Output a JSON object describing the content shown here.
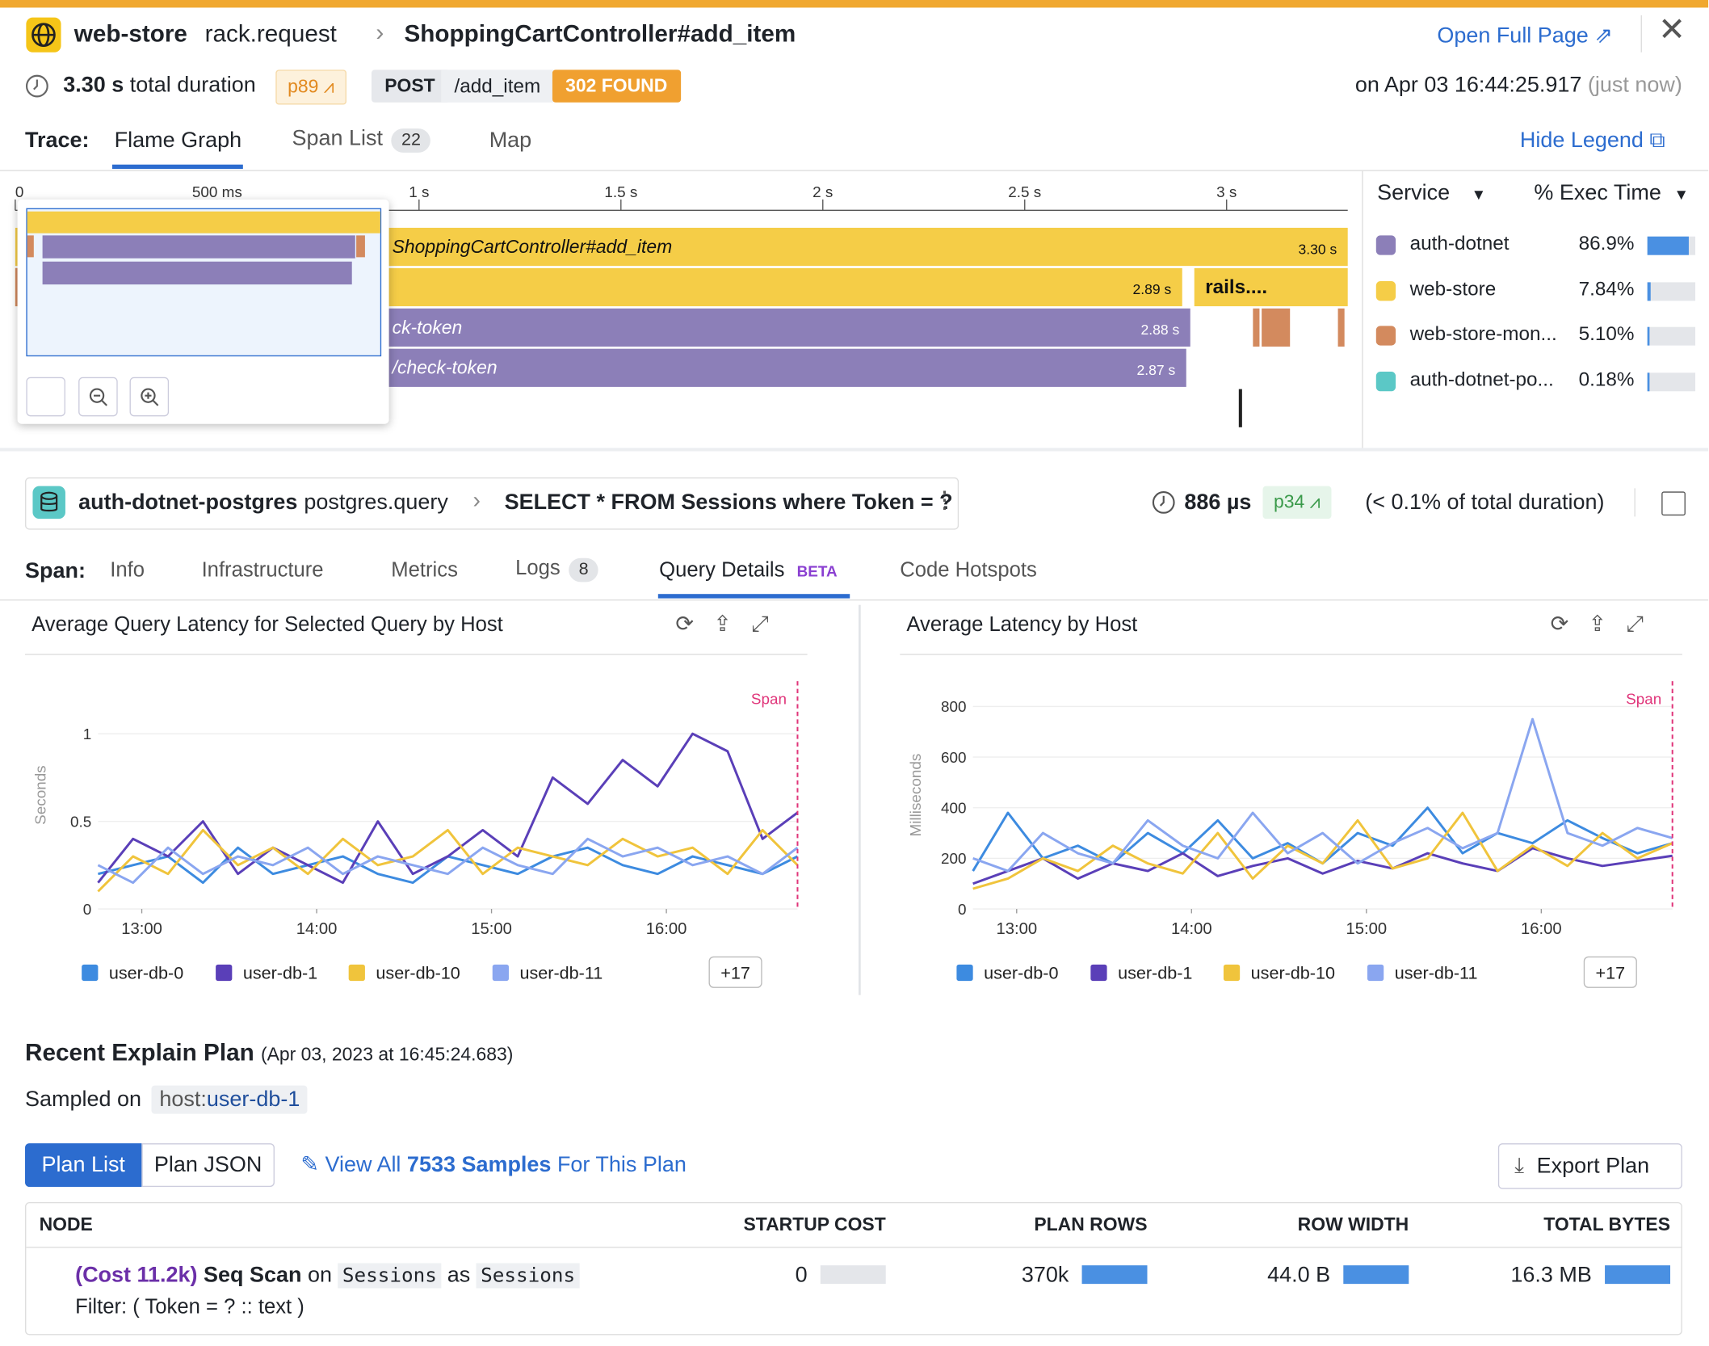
{
  "header": {
    "service": "web-store",
    "operation": "rack.request",
    "resource": "ShoppingCartController#add_item",
    "open_full_page": "Open Full Page",
    "duration": "3.30 s",
    "duration_label": "total duration",
    "percentile": "p89",
    "method": "POST",
    "path": "/add_item",
    "status": "302 FOUND",
    "timestamp": "on Apr 03 16:44:25.917",
    "relative": "(just now)"
  },
  "trace_tabs": {
    "label": "Trace:",
    "tabs": [
      "Flame Graph",
      "Span List",
      "Map"
    ],
    "span_count": "22",
    "hide_legend": "Hide Legend"
  },
  "flame_graph": {
    "xlim": [
      0,
      3.3
    ],
    "xticks": [
      {
        "value": 0,
        "label": "0"
      },
      {
        "value": 0.5,
        "label": "500 ms"
      },
      {
        "value": 1,
        "label": "1 s"
      },
      {
        "value": 1.5,
        "label": "1.5 s"
      },
      {
        "value": 2,
        "label": "2 s"
      },
      {
        "value": 2.5,
        "label": "2.5 s"
      },
      {
        "value": 3,
        "label": "3 s"
      }
    ],
    "spans": [
      {
        "label": "ShoppingCartController#add_item",
        "row": 0,
        "start": 0,
        "duration": {
          "value": 3.3,
          "label": "3.30 s"
        },
        "color": "#f5cd47"
      },
      {
        "row": 1,
        "start": 0,
        "duration": {
          "value": 2.89,
          "label": "2.89 s"
        },
        "color": "#f5cd47"
      },
      {
        "label": "rails....",
        "row": 1,
        "start": 2.92,
        "duration": {
          "value": 0.38
        },
        "color": "#f5cd47"
      },
      {
        "label": "ck-token",
        "row": 2,
        "start": 0.03,
        "duration": {
          "value": 2.88,
          "label": "2.88 s"
        },
        "color": "#8c7fb8"
      },
      {
        "label": "/check-token",
        "row": 3,
        "start": 0.03,
        "duration": {
          "value": 2.87,
          "label": "2.87 s"
        },
        "color": "#8c7fb8"
      }
    ]
  },
  "legend": {
    "service_header": "Service",
    "exec_header": "% Exec Time",
    "rows": [
      {
        "name": "auth-dotnet",
        "color": "#8c7fb8",
        "pct": {
          "value": 86.9,
          "label": "86.9%"
        }
      },
      {
        "name": "web-store",
        "color": "#f5cd47",
        "pct": {
          "value": 7.84,
          "label": "7.84%"
        }
      },
      {
        "name": "web-store-mon...",
        "color": "#d38a5e",
        "pct": {
          "value": 5.1,
          "label": "5.10%"
        }
      },
      {
        "name": "auth-dotnet-po...",
        "color": "#5bc8c6",
        "pct": {
          "value": 0.18,
          "label": "0.18%"
        }
      }
    ]
  },
  "span_header": {
    "service": "auth-dotnet-postgres",
    "operation": "postgres.query",
    "resource": "SELECT * FROM Sessions where Token = ?",
    "duration": "886 µs",
    "percentile": "p34",
    "share": "(< 0.1% of total duration)"
  },
  "span_tabs": {
    "label": "Span:",
    "tabs": [
      "Info",
      "Infrastructure",
      "Metrics",
      "Logs",
      "Query Details",
      "Code Hotspots"
    ],
    "logs_count": "8",
    "beta": "BETA"
  },
  "chart_data": [
    {
      "type": "line",
      "title": "Average Query Latency for Selected Query by Host",
      "ylabel": "Seconds",
      "x": [
        12.75,
        12.95,
        13.15,
        13.35,
        13.55,
        13.75,
        13.95,
        14.15,
        14.35,
        14.55,
        14.75,
        14.95,
        15.15,
        15.35,
        15.55,
        15.75,
        15.95,
        16.15,
        16.35,
        16.55,
        16.75
      ],
      "xlim": [
        12.75,
        16.75
      ],
      "xticks": [
        {
          "value": 13,
          "label": "13:00"
        },
        {
          "value": 14,
          "label": "14:00"
        },
        {
          "value": 15,
          "label": "15:00"
        },
        {
          "value": 16,
          "label": "16:00"
        }
      ],
      "ylim": [
        0,
        1.3
      ],
      "yticks": [
        0,
        0.5,
        1
      ],
      "annotation": {
        "label": "Span",
        "x": 16.75
      },
      "more": "+17",
      "series": [
        {
          "name": "user-db-0",
          "color": "#3d8be0",
          "values": [
            0.2,
            0.25,
            0.3,
            0.15,
            0.35,
            0.2,
            0.25,
            0.3,
            0.2,
            0.15,
            0.3,
            0.25,
            0.2,
            0.3,
            0.35,
            0.25,
            0.2,
            0.3,
            0.25,
            0.2,
            0.3
          ]
        },
        {
          "name": "user-db-1",
          "color": "#5a3fb8",
          "values": [
            0.15,
            0.4,
            0.3,
            0.5,
            0.2,
            0.35,
            0.25,
            0.15,
            0.5,
            0.2,
            0.3,
            0.45,
            0.3,
            0.75,
            0.6,
            0.85,
            0.7,
            1.0,
            0.9,
            0.4,
            0.55
          ]
        },
        {
          "name": "user-db-10",
          "color": "#f0c43c",
          "values": [
            0.1,
            0.3,
            0.2,
            0.45,
            0.25,
            0.35,
            0.2,
            0.4,
            0.25,
            0.3,
            0.45,
            0.2,
            0.35,
            0.3,
            0.25,
            0.4,
            0.3,
            0.35,
            0.2,
            0.45,
            0.25
          ]
        },
        {
          "name": "user-db-11",
          "color": "#8aa6f0",
          "values": [
            0.25,
            0.15,
            0.35,
            0.2,
            0.3,
            0.25,
            0.35,
            0.2,
            0.3,
            0.25,
            0.2,
            0.35,
            0.25,
            0.2,
            0.4,
            0.3,
            0.35,
            0.25,
            0.3,
            0.2,
            0.35
          ]
        }
      ]
    },
    {
      "type": "line",
      "title": "Average Latency by Host",
      "ylabel": "Milliseconds",
      "x": [
        12.75,
        12.95,
        13.15,
        13.35,
        13.55,
        13.75,
        13.95,
        14.15,
        14.35,
        14.55,
        14.75,
        14.95,
        15.15,
        15.35,
        15.55,
        15.75,
        15.95,
        16.15,
        16.35,
        16.55,
        16.75
      ],
      "xlim": [
        12.75,
        16.75
      ],
      "xticks": [
        {
          "value": 13,
          "label": "13:00"
        },
        {
          "value": 14,
          "label": "14:00"
        },
        {
          "value": 15,
          "label": "15:00"
        },
        {
          "value": 16,
          "label": "16:00"
        }
      ],
      "ylim": [
        0,
        900
      ],
      "yticks": [
        0,
        200,
        400,
        600,
        800
      ],
      "annotation": {
        "label": "Span",
        "x": 16.75
      },
      "more": "+17",
      "series": [
        {
          "name": "user-db-0",
          "color": "#3d8be0",
          "values": [
            150,
            380,
            200,
            250,
            180,
            300,
            220,
            350,
            200,
            260,
            180,
            300,
            250,
            400,
            220,
            300,
            260,
            350,
            280,
            220,
            260
          ]
        },
        {
          "name": "user-db-1",
          "color": "#5a3fb8",
          "values": [
            100,
            150,
            200,
            120,
            180,
            150,
            220,
            130,
            170,
            200,
            140,
            190,
            160,
            220,
            180,
            150,
            240,
            200,
            170,
            190,
            210
          ]
        },
        {
          "name": "user-db-10",
          "color": "#f0c43c",
          "values": [
            80,
            120,
            200,
            150,
            250,
            180,
            140,
            300,
            120,
            250,
            180,
            350,
            160,
            200,
            380,
            150,
            250,
            170,
            300,
            200,
            260
          ]
        },
        {
          "name": "user-db-11",
          "color": "#8aa6f0",
          "values": [
            200,
            150,
            300,
            220,
            180,
            350,
            250,
            200,
            380,
            220,
            300,
            180,
            260,
            320,
            240,
            300,
            750,
            300,
            250,
            320,
            280
          ]
        }
      ]
    }
  ],
  "explain": {
    "title": "Recent Explain Plan",
    "date": "(Apr 03, 2023 at 16:45:24.683)",
    "sampled_on": "Sampled on",
    "host_key": "host:",
    "host": "user-db-1",
    "plan_tabs": [
      "Plan List",
      "Plan JSON"
    ],
    "view_all": "View All",
    "samples": "7533 Samples",
    "for_plan": "For This Plan",
    "export": "Export Plan",
    "columns": [
      "NODE",
      "STARTUP COST",
      "PLAN ROWS",
      "ROW WIDTH",
      "TOTAL BYTES"
    ],
    "rows": [
      {
        "cost": "(Cost 11.2k)",
        "op": "Seq Scan",
        "on": "on",
        "rel": "Sessions",
        "as": "as",
        "alias": "Sessions",
        "filter": "Filter: ( Token = ? :: text )",
        "metrics": [
          {
            "value": 0,
            "label": "0"
          },
          {
            "value": 370000,
            "label": "370k"
          },
          {
            "value": 44,
            "label": "44.0 B"
          },
          {
            "value": 16300000,
            "label": "16.3 MB"
          }
        ]
      }
    ]
  }
}
